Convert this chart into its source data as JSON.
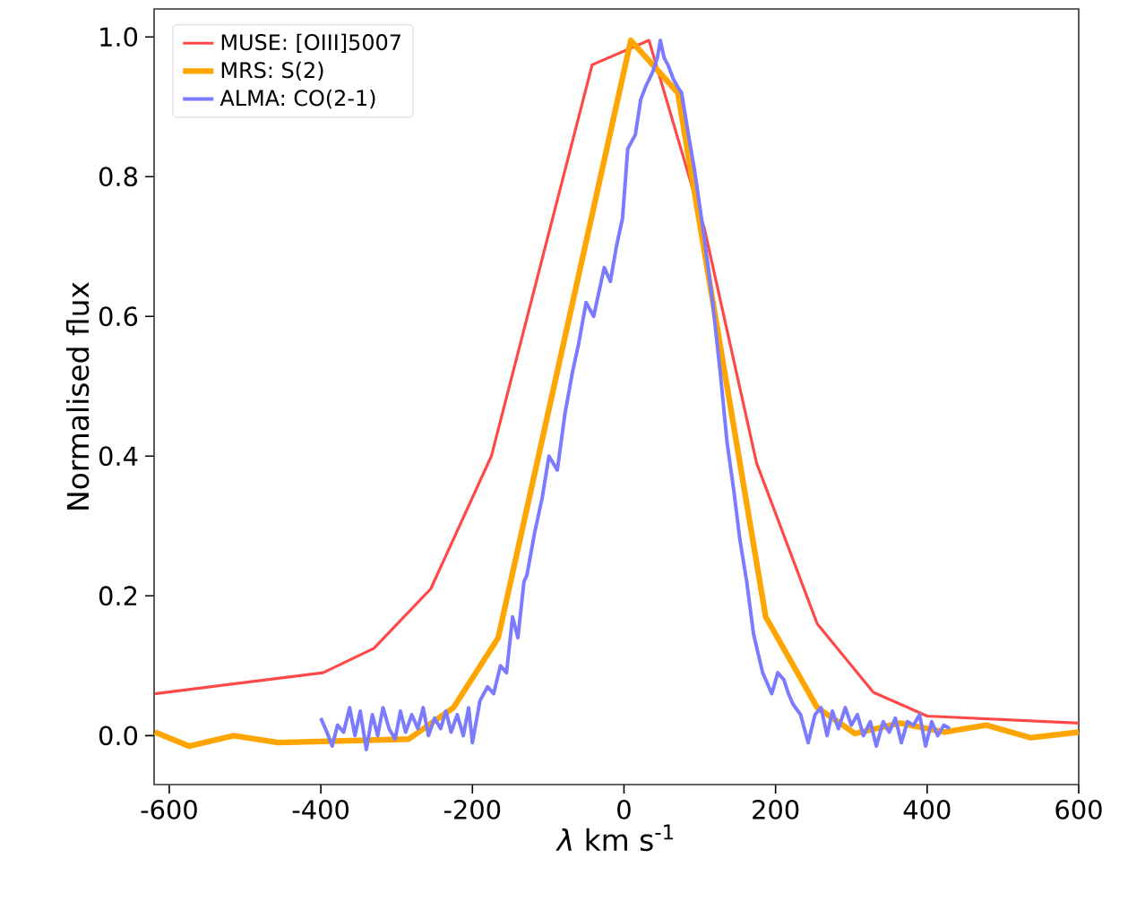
{
  "chart_data": {
    "type": "line",
    "xlabel": "*λ* km s$^{-1}$",
    "ylabel": "Normalised flux",
    "xlim": [
      -620,
      600
    ],
    "ylim": [
      -0.07,
      1.04
    ],
    "xticks": [
      -600,
      -400,
      -200,
      0,
      200,
      400,
      600
    ],
    "yticks": [
      {
        "value": 0,
        "label": "0.0"
      },
      0.2,
      0.4,
      0.6,
      0.8,
      {
        "value": 1,
        "label": "1.0"
      }
    ],
    "legend": "top left",
    "grid": false,
    "marker": "none",
    "line_style": "solid",
    "series": [
      {
        "name": "MUSE: [OIII]5007",
        "color": "#ff4848",
        "x": [
          -619,
          -397,
          -330,
          -255,
          -175,
          -42,
          33,
          106,
          175,
          255,
          329,
          400,
          600
        ],
        "values": [
          0.06,
          0.09,
          0.125,
          0.21,
          0.4,
          0.96,
          0.995,
          0.726,
          0.39,
          0.16,
          0.062,
          0.028,
          0.018
        ]
      },
      {
        "name": "MRS: S(2)",
        "color": "#ffa500",
        "x": [
          -619,
          -574,
          -515,
          -456,
          -284,
          -225,
          -166,
          9,
          71,
          187,
          255,
          305,
          364,
          423,
          478,
          537,
          600
        ],
        "values": [
          0.005,
          -0.015,
          0.0,
          -0.01,
          -0.005,
          0.04,
          0.14,
          0.995,
          0.92,
          0.17,
          0.04,
          0.003,
          0.018,
          0.005,
          0.015,
          -0.003,
          0.005
        ]
      },
      {
        "name": "ALMA: CO(2-1)",
        "color": "#7b7bff",
        "x": [
          -400,
          -392,
          -385,
          -378,
          -370,
          -362,
          -355,
          -348,
          -340,
          -332,
          -325,
          -318,
          -310,
          -302,
          -295,
          -288,
          -280,
          -272,
          -265,
          -258,
          -250,
          -242,
          -235,
          -228,
          -220,
          -212,
          -205,
          -200,
          -190,
          -180,
          -172,
          -163,
          -155,
          -147,
          -140,
          -132,
          -128,
          -118,
          -108,
          -99,
          -88,
          -78,
          -68,
          -60,
          -50,
          -40,
          -26,
          -18,
          -10,
          -2,
          5,
          15,
          22,
          29,
          38,
          44,
          48,
          53,
          58,
          65,
          70,
          76,
          85,
          93,
          105,
          117,
          127,
          136,
          145,
          153,
          162,
          171,
          183,
          195,
          203,
          211,
          217,
          223,
          233,
          243,
          252,
          260,
          268,
          275,
          283,
          292,
          300,
          308,
          316,
          325,
          333,
          342,
          350,
          358,
          366,
          374,
          382,
          390,
          398,
          406,
          414,
          422,
          430
        ],
        "values": [
          0.025,
          0.005,
          -0.015,
          0.015,
          0.005,
          0.04,
          0.0,
          0.035,
          -0.02,
          0.03,
          0.0,
          0.04,
          0.01,
          -0.005,
          0.035,
          0.005,
          0.03,
          0.01,
          0.04,
          0.0,
          0.025,
          0.01,
          0.035,
          0.005,
          0.03,
          0.0,
          0.04,
          -0.01,
          0.05,
          0.07,
          0.06,
          0.1,
          0.09,
          0.17,
          0.14,
          0.22,
          0.23,
          0.29,
          0.34,
          0.4,
          0.38,
          0.46,
          0.52,
          0.56,
          0.62,
          0.6,
          0.67,
          0.65,
          0.7,
          0.74,
          0.84,
          0.86,
          0.91,
          0.93,
          0.95,
          0.97,
          0.995,
          0.97,
          0.96,
          0.94,
          0.93,
          0.92,
          0.86,
          0.81,
          0.72,
          0.62,
          0.52,
          0.42,
          0.35,
          0.28,
          0.22,
          0.145,
          0.09,
          0.06,
          0.09,
          0.08,
          0.06,
          0.045,
          0.03,
          -0.01,
          0.03,
          0.04,
          0.0,
          0.035,
          0.01,
          0.04,
          0.015,
          0.03,
          0.0,
          0.02,
          -0.015,
          0.02,
          0.005,
          0.025,
          -0.01,
          0.02,
          0.015,
          0.03,
          -0.015,
          0.02,
          0.0,
          0.015,
          0.01
        ]
      }
    ]
  }
}
